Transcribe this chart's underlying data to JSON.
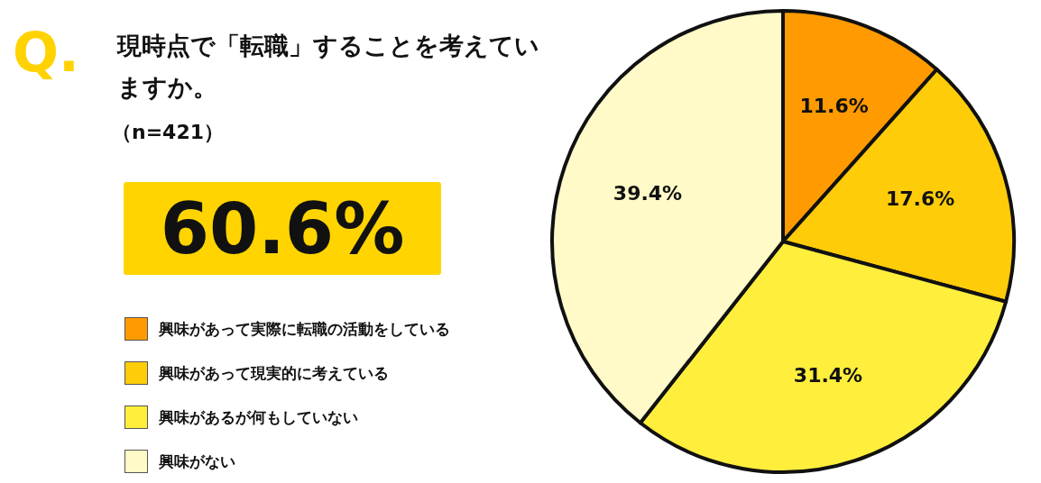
{
  "chart_data": {
    "type": "pie",
    "title": "現時点で「転職」することを考えていますか。",
    "subtitle": "（n=421）",
    "annotations": [
      "Q.",
      "60.6%"
    ],
    "categories": [
      "興味があって実際に転職の活動をしている",
      "興味があって現実的に考えている",
      "興味があるが何もしていない",
      "興味がない"
    ],
    "values": [
      11.6,
      17.6,
      31.4,
      39.4
    ],
    "colors": [
      "#ff9a00",
      "#ffcc0a",
      "#ffee3c",
      "#fffac8"
    ],
    "value_labels": [
      "11.6%",
      "17.6%",
      "31.4%",
      "39.4%"
    ],
    "legend": "left"
  }
}
